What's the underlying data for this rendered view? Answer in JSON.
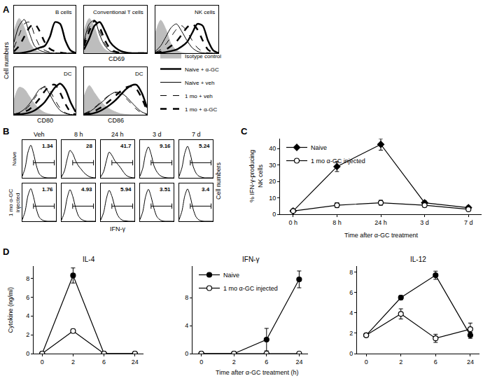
{
  "chart_data": [
    {
      "type": "line",
      "annotations": [
        "A"
      ],
      "ylabel": "Cell numbers",
      "tick_labels": false,
      "grid": false,
      "legend": "lower right",
      "x": [
        0,
        1,
        2,
        3,
        4,
        5,
        6,
        7,
        8,
        9,
        10,
        11,
        12
      ],
      "xlim": [
        0,
        12
      ],
      "ylim": [
        0,
        130
      ],
      "series": [
        {
          "name": "Isotype control",
          "type": "area",
          "color": "#bdbdbd",
          "line_style": "solid"
        },
        {
          "name": "Naive + α-GC",
          "color": "#000000",
          "line_style": "bold"
        },
        {
          "name": "Naive + veh",
          "color": "#000000",
          "line_style": "solid"
        },
        {
          "name": "1 mo + veh",
          "color": "#000000",
          "line_style": "dashed"
        },
        {
          "name": "1 mo + α-GC",
          "color": "#000000",
          "line_style": "bold-dashed"
        }
      ],
      "rows": [
        {
          "xlabel": "CD69",
          "plots": [
            {
              "title": "B cells",
              "values": [
                [
                  60,
                  95,
                  70,
                  30,
                  10,
                  3,
                  1,
                  0,
                  0,
                  0,
                  0,
                  0,
                  0
                ],
                [
                  0,
                  0,
                  2,
                  5,
                  10,
                  15,
                  20,
                  45,
                  85,
                  80,
                  35,
                  8,
                  1
                ],
                [
                  30,
                  75,
                  92,
                  55,
                  20,
                  8,
                  3,
                  1,
                  0,
                  0,
                  0,
                  0,
                  0
                ],
                [
                  15,
                  50,
                  80,
                  85,
                  50,
                  20,
                  8,
                  3,
                  1,
                  0,
                  0,
                  0,
                  0
                ],
                [
                  5,
                  20,
                  45,
                  70,
                  80,
                  60,
                  30,
                  12,
                  5,
                  2,
                  0,
                  0,
                  0
                ]
              ]
            },
            {
              "title": "Conventional T cells",
              "values": [
                [
                  60,
                  95,
                  70,
                  30,
                  10,
                  3,
                  1,
                  0,
                  0,
                  0,
                  0,
                  0,
                  0
                ],
                [
                  10,
                  40,
                  75,
                  85,
                  60,
                  30,
                  15,
                  6,
                  2,
                  0,
                  0,
                  0,
                  0
                ],
                [
                  30,
                  80,
                  90,
                  50,
                  20,
                  6,
                  2,
                  0,
                  0,
                  0,
                  0,
                  0,
                  0
                ],
                [
                  25,
                  70,
                  90,
                  60,
                  25,
                  8,
                  3,
                  1,
                  0,
                  0,
                  0,
                  0,
                  0
                ],
                [
                  20,
                  60,
                  88,
                  70,
                  35,
                  12,
                  4,
                  1,
                  0,
                  0,
                  0,
                  0,
                  0
                ]
              ]
            },
            {
              "title": "NK cells",
              "values": [
                [
                  55,
                  90,
                  65,
                  25,
                  8,
                  2,
                  0,
                  0,
                  0,
                  0,
                  0,
                  0,
                  0
                ],
                [
                  0,
                  1,
                  3,
                  6,
                  10,
                  18,
                  30,
                  55,
                  80,
                  75,
                  35,
                  8,
                  1
                ],
                [
                  5,
                  20,
                  45,
                  70,
                  80,
                  60,
                  35,
                  15,
                  5,
                  1,
                  0,
                  0,
                  0
                ],
                [
                  2,
                  10,
                  25,
                  45,
                  65,
                  75,
                  60,
                  35,
                  15,
                  5,
                  1,
                  0,
                  0
                ],
                [
                  1,
                  4,
                  10,
                  20,
                  32,
                  50,
                  70,
                  80,
                  65,
                  35,
                  10,
                  2,
                  0
                ]
              ]
            }
          ]
        },
        {
          "plots": [
            {
              "title": "DC",
              "xlabel": "CD80",
              "values": [
                [
                  40,
                  75,
                  70,
                  50,
                  30,
                  15,
                  6,
                  2,
                  0,
                  0,
                  0,
                  0,
                  0
                ],
                [
                  0,
                  1,
                  3,
                  6,
                  12,
                  22,
                  35,
                  55,
                  75,
                  85,
                  70,
                  35,
                  8
                ],
                [
                  2,
                  6,
                  15,
                  30,
                  50,
                  70,
                  75,
                  55,
                  30,
                  12,
                  4,
                  1,
                  0
                ],
                [
                  2,
                  5,
                  12,
                  25,
                  45,
                  65,
                  78,
                  65,
                  40,
                  18,
                  6,
                  1,
                  0
                ],
                [
                  1,
                  3,
                  8,
                  15,
                  28,
                  45,
                  65,
                  80,
                  82,
                  60,
                  30,
                  8,
                  1
                ]
              ]
            },
            {
              "title": "DC",
              "xlabel": "CD86",
              "values": [
                [
                  50,
                  80,
                  60,
                  40,
                  25,
                  15,
                  8,
                  3,
                  1,
                  0,
                  0,
                  0,
                  0
                ],
                [
                  0,
                  2,
                  5,
                  10,
                  18,
                  28,
                  40,
                  55,
                  70,
                  80,
                  82,
                  60,
                  20
                ],
                [
                  2,
                  8,
                  18,
                  30,
                  42,
                  55,
                  62,
                  60,
                  50,
                  35,
                  20,
                  8,
                  2
                ],
                [
                  3,
                  10,
                  20,
                  32,
                  45,
                  55,
                  60,
                  55,
                  45,
                  30,
                  15,
                  5,
                  1
                ],
                [
                  1,
                  4,
                  10,
                  18,
                  28,
                  40,
                  52,
                  65,
                  75,
                  78,
                  70,
                  45,
                  12
                ]
              ]
            }
          ]
        }
      ]
    },
    {
      "type": "line",
      "annotations": [
        "B"
      ],
      "xlabel": "IFN-γ",
      "ylabel": "Cell numbers",
      "tick_labels": false,
      "grid": false,
      "color": "#000000",
      "x": [
        0,
        1,
        2,
        3,
        4,
        5,
        6,
        7,
        8,
        9,
        10,
        11,
        12
      ],
      "xlim": [
        0,
        12
      ],
      "ylim": [
        0,
        110
      ],
      "columns": [
        "Veh",
        "8 h",
        "24 h",
        "3 d",
        "7 d"
      ],
      "rows": [
        {
          "label": "Naive",
          "percent_gated": [
            1.34,
            28,
            41.7,
            9.16,
            5.24
          ],
          "values": [
            [
              5,
              30,
              75,
              95,
              70,
              35,
              12,
              4,
              1,
              0,
              0,
              0,
              0
            ],
            [
              3,
              20,
              55,
              80,
              70,
              50,
              35,
              25,
              15,
              8,
              3,
              1,
              0
            ],
            [
              3,
              18,
              50,
              75,
              65,
              50,
              40,
              30,
              18,
              8,
              3,
              1,
              0
            ],
            [
              5,
              28,
              70,
              90,
              68,
              35,
              18,
              8,
              3,
              1,
              0,
              0,
              0
            ],
            [
              5,
              30,
              72,
              92,
              68,
              33,
              14,
              5,
              2,
              0,
              0,
              0,
              0
            ]
          ]
        },
        {
          "label": "1 mo α-GC injected",
          "percent_gated": [
            1.76,
            4.93,
            5.94,
            3.51,
            3.4
          ],
          "values": [
            [
              5,
              30,
              75,
              95,
              70,
              35,
              12,
              4,
              1,
              0,
              0,
              0,
              0
            ],
            [
              4,
              26,
              68,
              92,
              72,
              40,
              16,
              6,
              2,
              0,
              0,
              0,
              0
            ],
            [
              4,
              25,
              66,
              90,
              72,
              42,
              18,
              7,
              2,
              1,
              0,
              0,
              0
            ],
            [
              5,
              28,
              72,
              93,
              70,
              37,
              14,
              5,
              1,
              0,
              0,
              0,
              0
            ],
            [
              5,
              30,
              74,
              94,
              70,
              35,
              13,
              4,
              1,
              0,
              0,
              0,
              0
            ]
          ]
        }
      ]
    },
    {
      "type": "line",
      "annotations": [
        "C"
      ],
      "xlabel": "Time after α-GC treatment",
      "ylabel": "% IFN-γ-producing NK cells",
      "categories": [
        "0 h",
        "8 h",
        "24 h",
        "3 d",
        "7 d"
      ],
      "ylim": [
        0,
        46
      ],
      "yticks": [
        0,
        10,
        20,
        30,
        40
      ],
      "grid": false,
      "legend": "upper left",
      "series": [
        {
          "name": "Naive",
          "color": "#000000",
          "marker": "diamond",
          "values": [
            2,
            29,
            42.5,
            7,
            4
          ],
          "error": [
            0.3,
            3,
            3.5,
            1.2,
            1
          ]
        },
        {
          "name": "1 mo α-GC injected",
          "color": "#000000",
          "marker": "circle-open",
          "values": [
            2,
            5.5,
            7,
            5.5,
            3
          ],
          "error": [
            0.3,
            1.5,
            1.5,
            1.2,
            1
          ]
        }
      ]
    },
    {
      "type": "line",
      "annotations": [
        "D"
      ],
      "xlabel": "Time after α-GC treatment (h)",
      "ylabel": "Cytokine (ng/ml)",
      "categories": [
        "0",
        "2",
        "6",
        "24"
      ],
      "grid": false,
      "subplots": [
        {
          "title": "IL-4",
          "ylim": [
            0,
            9.3
          ],
          "yticks": [
            0,
            2,
            4,
            6,
            8
          ],
          "series": [
            {
              "name": "Naive",
              "color": "#000000",
              "marker": "circle",
              "values": [
                0,
                8.3,
                0,
                0
              ],
              "error": [
                0,
                0.8,
                0,
                0
              ]
            },
            {
              "name": "1 mo α-GC injected",
              "color": "#000000",
              "marker": "circle-open",
              "values": [
                0,
                2.4,
                0,
                0
              ],
              "error": [
                0,
                0.2,
                0,
                0
              ]
            }
          ]
        },
        {
          "title": "IFN-γ",
          "ylim": [
            0,
            12.5
          ],
          "yticks": [
            0,
            4,
            8
          ],
          "legend": "upper left",
          "series": [
            {
              "name": "Naive",
              "color": "#000000",
              "marker": "circle",
              "values": [
                0,
                0,
                2,
                10.6
              ],
              "error": [
                0,
                0,
                1.6,
                1.2
              ]
            },
            {
              "name": "1 mo α-GC injected",
              "color": "#000000",
              "marker": "circle-open",
              "values": [
                0,
                0,
                0,
                0
              ],
              "error": [
                0,
                0,
                0,
                0
              ]
            }
          ]
        },
        {
          "title": "IL-12",
          "ylim": [
            0,
            8.6
          ],
          "yticks": [
            0,
            2,
            4,
            6,
            8
          ],
          "series": [
            {
              "name": "Naive",
              "color": "#000000",
              "marker": "circle",
              "values": [
                1.8,
                5.5,
                7.7,
                1.8
              ],
              "error": [
                0,
                0.2,
                0.4,
                0.3
              ]
            },
            {
              "name": "1 mo α-GC injected",
              "color": "#000000",
              "marker": "circle-open",
              "values": [
                1.8,
                3.9,
                1.5,
                2.4
              ],
              "error": [
                0,
                0.5,
                0.4,
                0.6
              ]
            }
          ]
        }
      ]
    }
  ]
}
